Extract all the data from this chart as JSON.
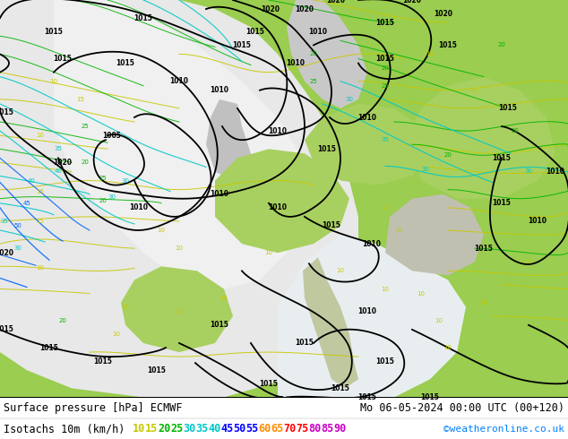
{
  "title_left": "Surface pressure [hPa] ECMWF",
  "title_right": "Mo 06-05-2024 00:00 UTC (00+120)",
  "legend_label": "Isotachs 10m (km/h)",
  "copyright": "©weatheronline.co.uk",
  "isotach_values": [
    10,
    15,
    20,
    25,
    30,
    35,
    40,
    45,
    50,
    55,
    60,
    65,
    70,
    75,
    80,
    85,
    90
  ],
  "isotach_colors": [
    "#c8c800",
    "#c8c800",
    "#00b400",
    "#00b400",
    "#00c8c8",
    "#00c8c8",
    "#00c8c8",
    "#0000ff",
    "#0000ff",
    "#0000ff",
    "#ff8c00",
    "#ff8c00",
    "#ff0000",
    "#ff0000",
    "#c800c8",
    "#c800c8",
    "#c800c8"
  ],
  "land_green": "#9acd50",
  "ocean_gray": "#e0e0e0",
  "sea_light": "#f0f0f0",
  "fig_width": 6.34,
  "fig_height": 4.9,
  "dpi": 100,
  "font_size_title": 8.5,
  "font_size_legend": 8.5
}
